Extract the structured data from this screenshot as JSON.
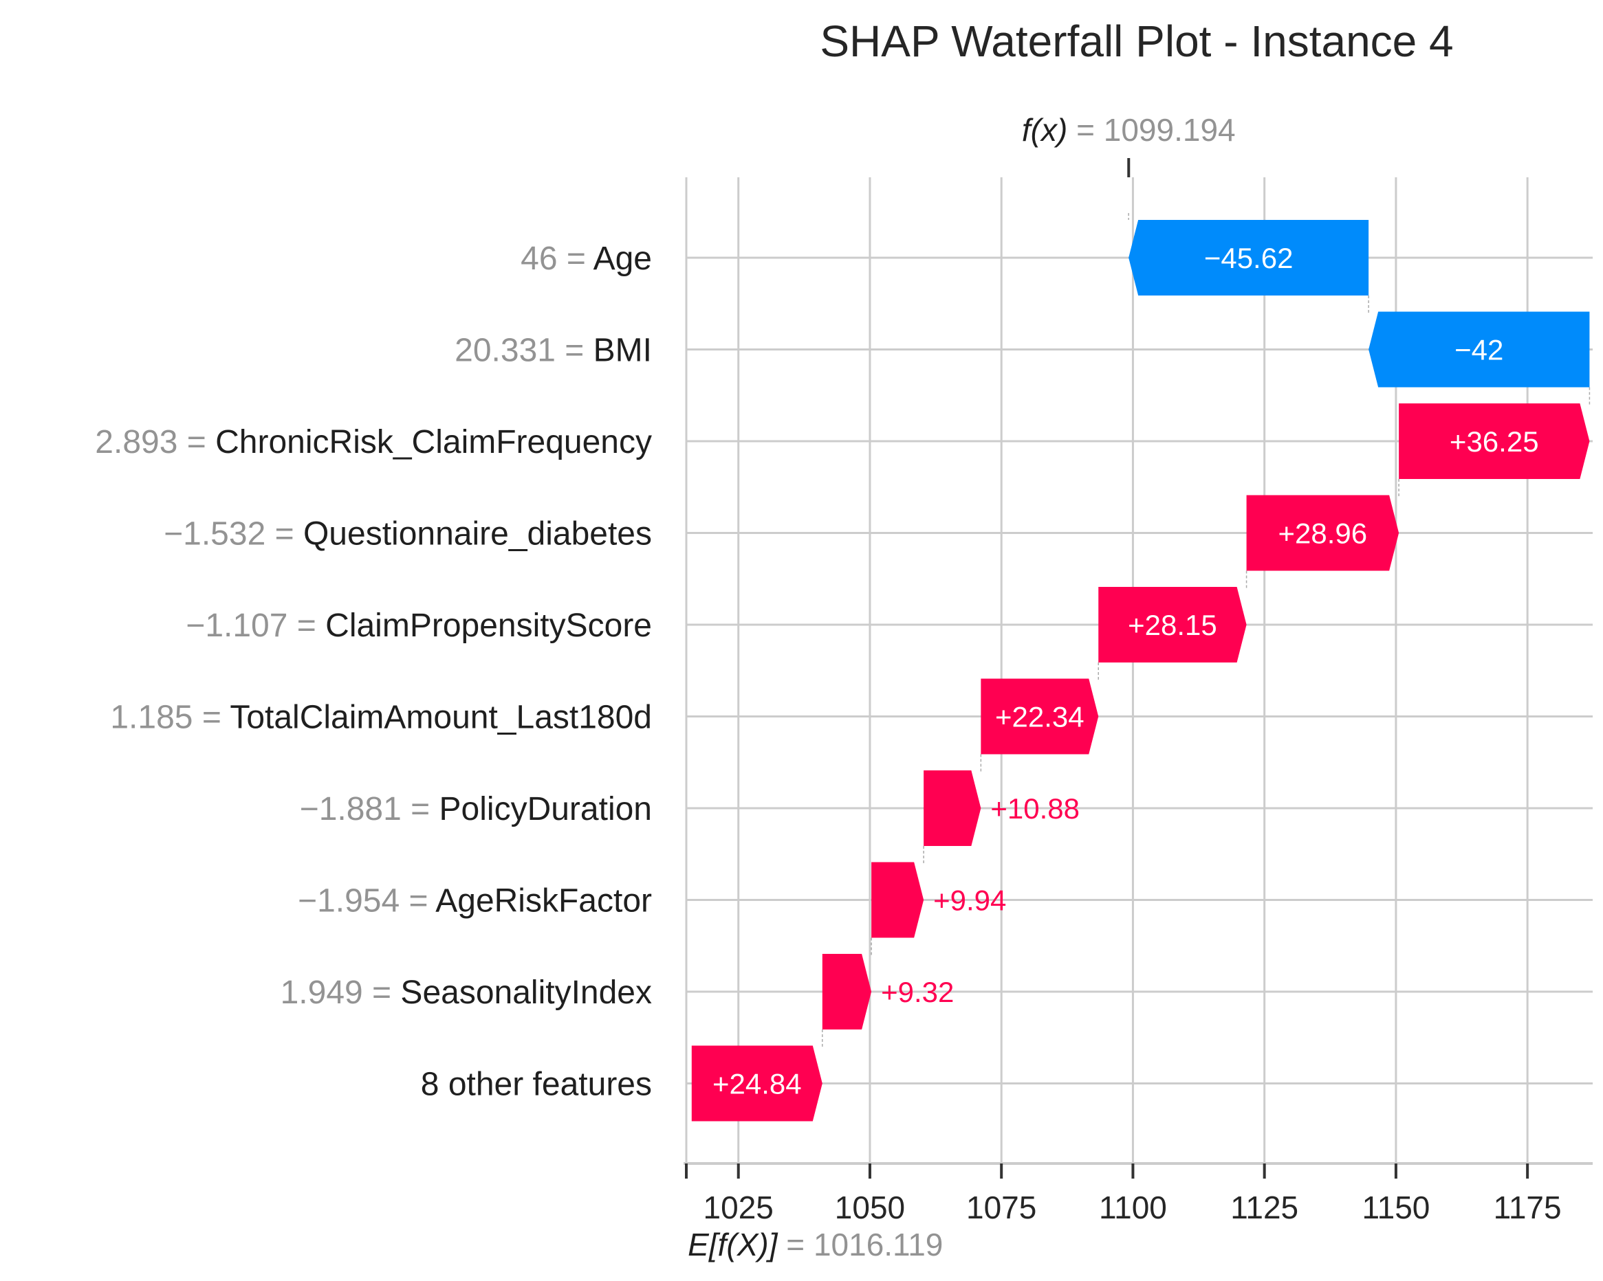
{
  "chart_data": {
    "type": "waterfall",
    "title": "SHAP Waterfall Plot - Instance 4",
    "base_value": {
      "label": "E[f(X)]",
      "eq": " = ",
      "value": "1016.119",
      "x": 1016.119
    },
    "output_value": {
      "label": "f(x)",
      "eq": " = ",
      "value": "1099.194",
      "x": 1099.194
    },
    "xlim": [
      1015.1,
      1187.4
    ],
    "x_ticks": [
      1025,
      1050,
      1075,
      1100,
      1125,
      1150,
      1175
    ],
    "x_tick_labels": [
      "1025",
      "1050",
      "1075",
      "1100",
      "1125",
      "1150",
      "1175"
    ],
    "grid": true,
    "colors": {
      "positive": "#ff0051",
      "negative": "#008bfb",
      "grid": "#cccccc",
      "text": "#1f1f1f",
      "muted": "#939393"
    },
    "features": [
      {
        "value": "46",
        "name": "Age",
        "shap": -45.62,
        "label": "−45.62"
      },
      {
        "value": "20.331",
        "name": "BMI",
        "shap": -42.0,
        "label": "−42"
      },
      {
        "value": "2.893",
        "name": "ChronicRisk_ClaimFrequency",
        "shap": 36.25,
        "label": "+36.25"
      },
      {
        "value": "−1.532",
        "name": "Questionnaire_diabetes",
        "shap": 28.96,
        "label": "+28.96"
      },
      {
        "value": "−1.107",
        "name": "ClaimPropensityScore",
        "shap": 28.15,
        "label": "+28.15"
      },
      {
        "value": "1.185",
        "name": "TotalClaimAmount_Last180d",
        "shap": 22.34,
        "label": "+22.34"
      },
      {
        "value": "−1.881",
        "name": "PolicyDuration",
        "shap": 10.88,
        "label": "+10.88"
      },
      {
        "value": "−1.954",
        "name": "AgeRiskFactor",
        "shap": 9.94,
        "label": "+9.94"
      },
      {
        "value": "1.949",
        "name": "SeasonalityIndex",
        "shap": 9.32,
        "label": "+9.32"
      },
      {
        "value": "",
        "name": "8 other features",
        "shap": 24.84,
        "label": "+24.84"
      }
    ]
  }
}
